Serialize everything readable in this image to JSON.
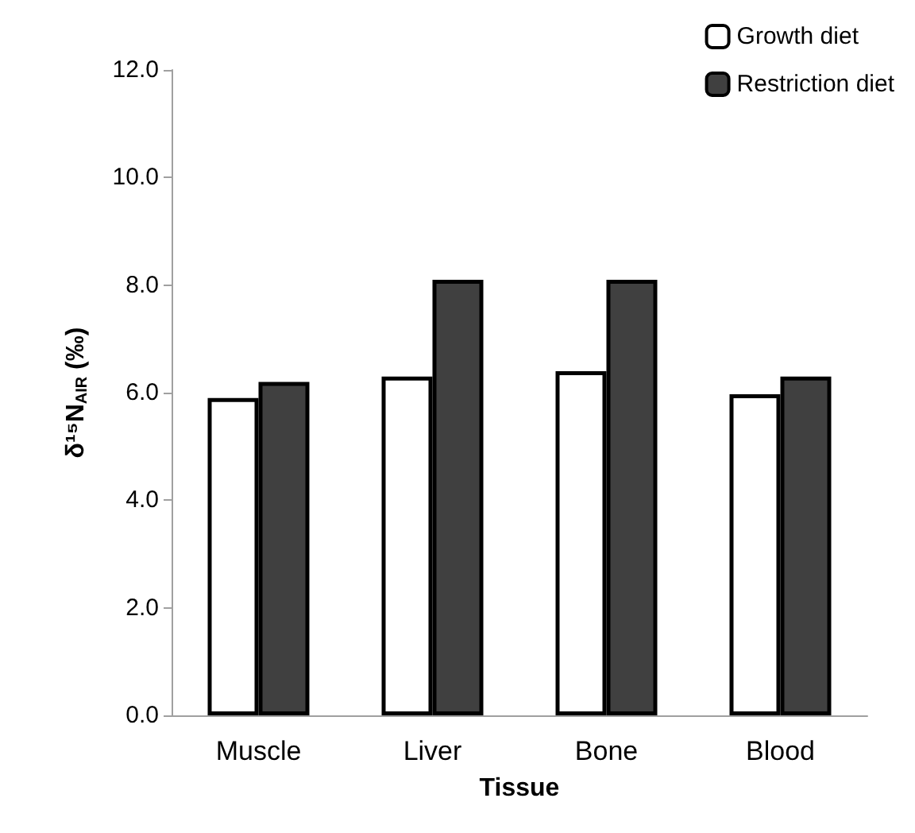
{
  "chart_data": {
    "type": "bar",
    "xlabel": "Tissue",
    "ylabel": "δ¹⁵N$_{AIR}$ (‰)",
    "categories": [
      "Muscle",
      "Liver",
      "Bone",
      "Blood"
    ],
    "series": [
      {
        "name": "Growth diet",
        "color": "#ffffff",
        "values": [
          5.9,
          6.3,
          6.4,
          5.97
        ]
      },
      {
        "name": "Restriction diet",
        "color": "#404040",
        "values": [
          6.2,
          8.1,
          8.1,
          6.3
        ]
      }
    ],
    "ylim": [
      0,
      12
    ],
    "yticks": [
      {
        "value": 0,
        "label": "0.0"
      },
      {
        "value": 2,
        "label": "2.0"
      },
      {
        "value": 4,
        "label": "4.0"
      },
      {
        "value": 6,
        "label": "6.0"
      },
      {
        "value": 8,
        "label": "8.0"
      },
      {
        "value": 10,
        "label": "10.0"
      },
      {
        "value": 12,
        "label": "12.0"
      }
    ],
    "grid": false,
    "legend": "top right"
  }
}
